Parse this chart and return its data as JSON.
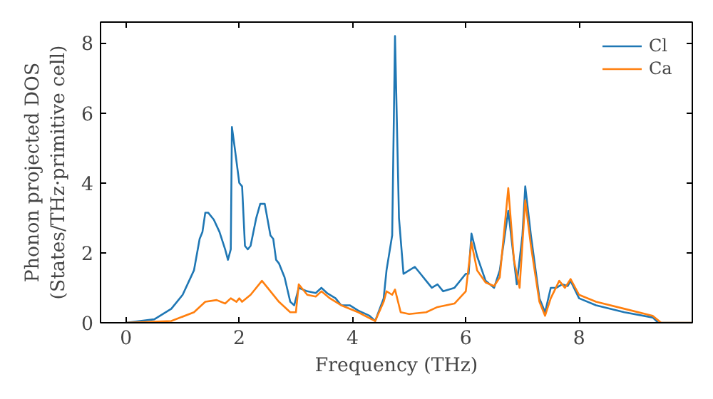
{
  "chart_data": {
    "type": "line",
    "xlabel": "Frequency (THz)",
    "ylabel": "Phonon projected DOS\n(States/THz·primitive cell)",
    "xlim": [
      -0.45,
      10
    ],
    "ylim": [
      0,
      8.6
    ],
    "xticks": [
      0,
      2,
      4,
      6,
      8
    ],
    "yticks": [
      0,
      2,
      4,
      6,
      8
    ],
    "grid": false,
    "legend": "top right",
    "marker": "none",
    "line_style": "solid",
    "series": [
      {
        "name": "Cl",
        "color": "#1f77b4",
        "x": [
          0,
          0.5,
          0.8,
          1.0,
          1.2,
          1.3,
          1.35,
          1.4,
          1.45,
          1.55,
          1.65,
          1.75,
          1.8,
          1.85,
          1.87,
          1.92,
          2.0,
          2.05,
          2.1,
          2.15,
          2.2,
          2.3,
          2.37,
          2.45,
          2.55,
          2.6,
          2.65,
          2.7,
          2.8,
          2.9,
          2.97,
          3.05,
          3.2,
          3.35,
          3.45,
          3.55,
          3.7,
          3.8,
          3.95,
          4.1,
          4.3,
          4.4,
          4.55,
          4.6,
          4.7,
          4.75,
          4.82,
          4.9,
          5.0,
          5.1,
          5.2,
          5.3,
          5.4,
          5.5,
          5.6,
          5.8,
          6.0,
          6.05,
          6.1,
          6.2,
          6.35,
          6.5,
          6.6,
          6.75,
          6.85,
          6.9,
          7.0,
          7.05,
          7.15,
          7.3,
          7.4,
          7.5,
          7.6,
          7.7,
          7.8,
          7.85,
          8.0,
          8.3,
          8.8,
          9.3,
          9.4,
          10.0
        ],
        "values": [
          0,
          0.1,
          0.4,
          0.8,
          1.5,
          2.4,
          2.6,
          3.15,
          3.15,
          2.95,
          2.6,
          2.1,
          1.8,
          2.1,
          5.6,
          5.0,
          4.0,
          3.9,
          2.2,
          2.1,
          2.2,
          3.0,
          3.4,
          3.4,
          2.5,
          2.4,
          1.8,
          1.7,
          1.3,
          0.6,
          0.5,
          1.0,
          0.9,
          0.85,
          1.0,
          0.85,
          0.7,
          0.5,
          0.5,
          0.35,
          0.2,
          0.05,
          0.7,
          1.5,
          2.5,
          8.2,
          3.0,
          1.4,
          1.5,
          1.6,
          1.4,
          1.2,
          1.0,
          1.1,
          0.9,
          1.0,
          1.4,
          1.4,
          2.55,
          1.9,
          1.2,
          1.0,
          1.5,
          3.2,
          1.8,
          1.1,
          2.5,
          3.9,
          2.5,
          0.7,
          0.3,
          1.0,
          1.0,
          1.1,
          1.05,
          1.2,
          0.7,
          0.5,
          0.3,
          0.15,
          0.0,
          0.0
        ]
      },
      {
        "name": "Ca",
        "color": "#ff7f0e",
        "x": [
          0,
          0.8,
          1.2,
          1.4,
          1.6,
          1.75,
          1.85,
          1.95,
          2.0,
          2.05,
          2.2,
          2.4,
          2.5,
          2.7,
          2.9,
          3.0,
          3.05,
          3.2,
          3.35,
          3.45,
          3.6,
          3.8,
          4.1,
          4.4,
          4.55,
          4.6,
          4.7,
          4.75,
          4.85,
          5.0,
          5.3,
          5.5,
          5.8,
          6.0,
          6.1,
          6.2,
          6.35,
          6.5,
          6.6,
          6.75,
          6.85,
          6.95,
          7.05,
          7.15,
          7.3,
          7.4,
          7.5,
          7.65,
          7.75,
          7.85,
          8.0,
          8.3,
          8.8,
          9.3,
          9.45,
          10.0
        ],
        "values": [
          0,
          0.05,
          0.3,
          0.6,
          0.65,
          0.55,
          0.7,
          0.6,
          0.7,
          0.6,
          0.8,
          1.2,
          1.0,
          0.6,
          0.3,
          0.3,
          1.1,
          0.8,
          0.75,
          0.9,
          0.7,
          0.5,
          0.3,
          0.05,
          0.6,
          0.9,
          0.8,
          0.95,
          0.3,
          0.25,
          0.3,
          0.45,
          0.55,
          0.9,
          2.3,
          1.5,
          1.15,
          1.05,
          1.3,
          3.85,
          1.8,
          1.0,
          3.5,
          2.2,
          0.6,
          0.2,
          0.7,
          1.2,
          1.0,
          1.25,
          0.8,
          0.6,
          0.4,
          0.2,
          0.0,
          0.0
        ]
      }
    ]
  }
}
